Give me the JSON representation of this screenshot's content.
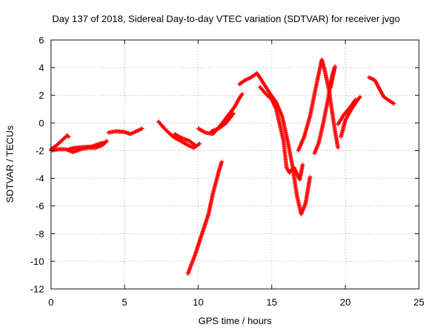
{
  "chart_data": {
    "type": "scatter",
    "title": "Day 137 of 2018, Sidereal Day-to-day VTEC variation (SDTVAR) for receiver jvgo",
    "xlabel": "GPS time / hours",
    "ylabel": "SDTVAR / TECUs",
    "xlim": [
      0,
      25
    ],
    "ylim": [
      -12,
      6
    ],
    "xticks": [
      0,
      5,
      10,
      15,
      20,
      25
    ],
    "yticks": [
      -12,
      -10,
      -8,
      -6,
      -4,
      -2,
      0,
      2,
      4,
      6
    ],
    "grid": true,
    "marker": "+",
    "color": "#ff0000",
    "series": [
      {
        "segments": [
          [
            [
              0.0,
              -1.9
            ],
            [
              0.4,
              -1.6
            ],
            [
              0.8,
              -1.2
            ],
            [
              1.1,
              -0.9
            ],
            [
              1.2,
              -1.0
            ]
          ],
          [
            [
              0.0,
              -2.0
            ],
            [
              0.5,
              -1.9
            ],
            [
              1.0,
              -1.9
            ],
            [
              1.5,
              -2.1
            ],
            [
              2.0,
              -1.9
            ],
            [
              2.5,
              -1.8
            ],
            [
              3.0,
              -1.8
            ],
            [
              3.5,
              -1.6
            ],
            [
              3.8,
              -1.3
            ]
          ],
          [
            [
              1.2,
              -1.9
            ],
            [
              1.6,
              -1.8
            ],
            [
              2.2,
              -1.75
            ],
            [
              2.8,
              -1.7
            ],
            [
              3.3,
              -1.5
            ],
            [
              3.7,
              -1.4
            ]
          ],
          [
            [
              3.9,
              -0.7
            ],
            [
              4.4,
              -0.6
            ],
            [
              5.0,
              -0.65
            ],
            [
              5.4,
              -0.8
            ],
            [
              5.8,
              -0.6
            ],
            [
              6.2,
              -0.4
            ]
          ],
          [
            [
              7.3,
              0.1
            ],
            [
              7.8,
              -0.5
            ],
            [
              8.3,
              -1.0
            ],
            [
              8.8,
              -1.3
            ],
            [
              9.3,
              -1.6
            ],
            [
              9.7,
              -1.8
            ],
            [
              10.1,
              -1.5
            ]
          ],
          [
            [
              8.4,
              -0.8
            ],
            [
              8.9,
              -1.1
            ],
            [
              9.4,
              -1.3
            ],
            [
              9.8,
              -1.6
            ]
          ],
          [
            [
              9.3,
              -10.9
            ],
            [
              9.8,
              -9.5
            ],
            [
              10.2,
              -8.2
            ],
            [
              10.7,
              -6.6
            ],
            [
              11.0,
              -5.1
            ],
            [
              11.4,
              -3.5
            ],
            [
              11.6,
              -2.8
            ]
          ],
          [
            [
              10.0,
              -0.4
            ],
            [
              10.5,
              -0.7
            ],
            [
              11.0,
              -0.8
            ],
            [
              11.5,
              -0.2
            ],
            [
              12.0,
              0.5
            ],
            [
              12.5,
              1.2
            ],
            [
              12.8,
              1.8
            ],
            [
              13.0,
              2.1
            ]
          ],
          [
            [
              10.9,
              -0.6
            ],
            [
              11.4,
              -0.4
            ],
            [
              11.9,
              0.0
            ],
            [
              12.4,
              0.7
            ]
          ],
          [
            [
              12.8,
              2.8
            ],
            [
              13.2,
              3.1
            ],
            [
              13.6,
              3.3
            ],
            [
              14.0,
              3.6
            ],
            [
              14.3,
              3.1
            ],
            [
              14.6,
              2.6
            ],
            [
              14.9,
              2.1
            ],
            [
              15.3,
              1.5
            ],
            [
              15.7,
              0.5
            ],
            [
              16.1,
              -1.4
            ],
            [
              16.4,
              -3.1
            ],
            [
              16.7,
              -5.2
            ],
            [
              17.0,
              -6.6
            ],
            [
              17.3,
              -5.8
            ],
            [
              17.6,
              -3.9
            ]
          ],
          [
            [
              14.2,
              2.6
            ],
            [
              14.6,
              2.1
            ],
            [
              15.0,
              1.7
            ],
            [
              15.3,
              1.0
            ],
            [
              15.8,
              -1.3
            ],
            [
              16.0,
              -3.2
            ],
            [
              16.2,
              -3.6
            ],
            [
              16.5,
              -3.2
            ],
            [
              16.9,
              -4.1
            ],
            [
              17.1,
              -3.0
            ]
          ],
          [
            [
              16.8,
              -2.0
            ],
            [
              17.2,
              -1.0
            ],
            [
              17.6,
              0.5
            ],
            [
              18.0,
              2.6
            ],
            [
              18.4,
              4.6
            ],
            [
              18.6,
              3.8
            ],
            [
              18.9,
              2.3
            ],
            [
              19.1,
              0.8
            ],
            [
              19.3,
              -0.6
            ],
            [
              19.5,
              -1.8
            ]
          ],
          [
            [
              17.9,
              -2.2
            ],
            [
              18.2,
              -1.4
            ],
            [
              18.5,
              0.0
            ],
            [
              18.8,
              1.6
            ],
            [
              19.1,
              3.4
            ],
            [
              19.3,
              4.1
            ],
            [
              19.0,
              2.6
            ]
          ],
          [
            [
              19.7,
              -1.0
            ],
            [
              20.0,
              0.2
            ],
            [
              20.3,
              0.8
            ],
            [
              20.6,
              1.3
            ],
            [
              21.0,
              1.9
            ]
          ],
          [
            [
              19.5,
              -0.1
            ],
            [
              19.9,
              0.6
            ],
            [
              20.3,
              1.1
            ],
            [
              20.7,
              1.7
            ]
          ],
          [
            [
              21.6,
              3.3
            ],
            [
              22.0,
              3.1
            ],
            [
              22.3,
              2.5
            ],
            [
              22.6,
              1.9
            ],
            [
              23.0,
              1.6
            ],
            [
              23.3,
              1.4
            ]
          ]
        ]
      }
    ]
  }
}
